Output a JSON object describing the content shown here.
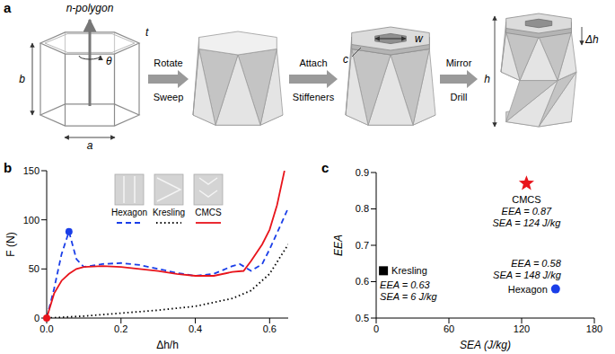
{
  "diagram": {
    "panel": "a",
    "axis_label": "n-polygon",
    "angle_label": "θ",
    "dimensions": {
      "thickness": "t",
      "height": "b",
      "side": "a",
      "hole_width": "w",
      "stiffener": "c",
      "stroke": "Δh",
      "total_height": "h"
    },
    "steps": [
      [
        "Rotate",
        "Sweep"
      ],
      [
        "Attach",
        "Stiffeners"
      ],
      [
        "Mirror",
        "Drill"
      ]
    ]
  },
  "chart_data": [
    {
      "panel": "b",
      "type": "line",
      "x_label": "Δh/h",
      "y_label": "F (N)",
      "xlim": [
        0,
        0.65
      ],
      "xticks": [
        {
          "value": 0,
          "label": "0.0"
        },
        0.2,
        0.4,
        0.6
      ],
      "ylim": [
        0,
        150
      ],
      "yticks": [
        0,
        50,
        100,
        150
      ],
      "grid": false,
      "legend": "top",
      "series": [
        {
          "name": "Hexagon",
          "color": "#1a3ee8",
          "line_style": "dashed",
          "x": [
            0,
            0.02,
            0.04,
            0.06,
            0.08,
            0.1,
            0.15,
            0.2,
            0.25,
            0.3,
            0.35,
            0.4,
            0.45,
            0.5,
            0.52,
            0.55,
            0.58,
            0.6,
            0.63,
            0.65
          ],
          "values": [
            0,
            30,
            65,
            88,
            60,
            52,
            55,
            56,
            54,
            50,
            46,
            43,
            45,
            53,
            55,
            48,
            55,
            70,
            95,
            112
          ]
        },
        {
          "name": "Kresling",
          "color": "#000000",
          "line_style": "dotted",
          "x": [
            0,
            0.1,
            0.2,
            0.3,
            0.4,
            0.5,
            0.55,
            0.6,
            0.65
          ],
          "values": [
            0,
            2,
            5,
            8,
            12,
            20,
            28,
            45,
            75
          ]
        },
        {
          "name": "CMCS",
          "color": "#e8141b",
          "line_style": "solid",
          "x": [
            0,
            0.02,
            0.04,
            0.06,
            0.08,
            0.1,
            0.15,
            0.2,
            0.25,
            0.3,
            0.35,
            0.4,
            0.45,
            0.5,
            0.53,
            0.55,
            0.58,
            0.6,
            0.62,
            0.64
          ],
          "values": [
            0,
            25,
            38,
            45,
            50,
            52,
            53,
            52,
            50,
            48,
            45,
            43,
            43,
            47,
            48,
            58,
            75,
            90,
            115,
            150
          ]
        }
      ],
      "highlighted_points": [
        {
          "series": "Hexagon",
          "x": 0.06,
          "y": 88
        },
        {
          "series": "CMCS",
          "x": 0,
          "y": 0
        }
      ]
    },
    {
      "panel": "c",
      "type": "scatter",
      "x_label": "SEA (J/kg)",
      "y_label": "EEA",
      "xlim": [
        0,
        180
      ],
      "xticks": [
        0,
        60,
        120,
        180
      ],
      "ylim": [
        0.5,
        0.9
      ],
      "yticks": [
        0.5,
        0.6,
        0.7,
        0.8,
        0.9
      ],
      "grid": false,
      "series": [
        {
          "name": "Kresling",
          "color": "#000000",
          "marker": "square",
          "x": [
            6
          ],
          "values": [
            0.63
          ],
          "annotations": [
            "EEA = 0.63",
            "SEA = 6 J/kg"
          ]
        },
        {
          "name": "CMCS",
          "color": "#e8141b",
          "marker": "star",
          "x": [
            124
          ],
          "values": [
            0.87
          ],
          "annotations": [
            "EEA = 0.87",
            "SEA = 124 J/kg"
          ]
        },
        {
          "name": "Hexagon",
          "color": "#1a3ee8",
          "marker": "circle",
          "x": [
            148
          ],
          "values": [
            0.58
          ],
          "annotations": [
            "EEA = 0.58",
            "SEA = 148 J/kg"
          ]
        }
      ]
    }
  ]
}
